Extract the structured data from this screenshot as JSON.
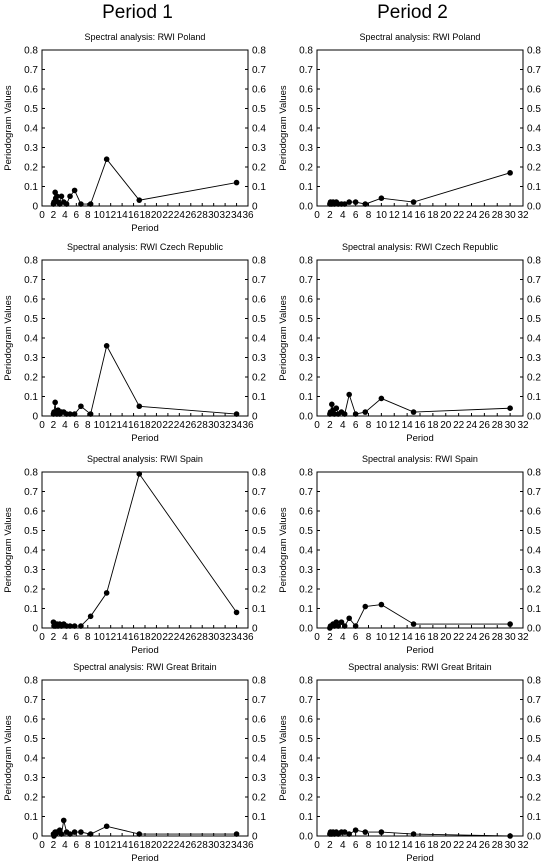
{
  "headers": [
    "Period 1",
    "Period 2"
  ],
  "y_axis_label": "Periodogram Values",
  "chart_data": [
    {
      "type": "line",
      "title": "Spectral analysis: RWI Poland",
      "xlabel": "Period",
      "ylabel": "Periodogram Values",
      "xlim": [
        0,
        36
      ],
      "xticks": [
        0,
        2,
        4,
        6,
        8,
        10,
        12,
        14,
        16,
        18,
        20,
        22,
        24,
        26,
        28,
        30,
        32,
        34,
        36
      ],
      "ylim": [
        0,
        0.8
      ],
      "yticks": [
        0,
        0.1,
        0.2,
        0.3,
        0.4,
        0.5,
        0.6,
        0.7,
        0.8
      ],
      "ytick_labels": [
        "0",
        "0.1",
        "0.2",
        "0.3",
        "0.4",
        "0.5",
        "0.6",
        "0.7",
        "0.8"
      ],
      "grid": false,
      "series": [
        {
          "x": [
            2.0,
            2.1,
            2.3,
            2.4,
            2.6,
            2.8,
            3.1,
            3.4,
            3.8,
            4.3,
            4.9,
            5.7,
            6.8,
            8.5,
            11.3,
            17.0,
            34.0
          ],
          "y": [
            0.01,
            0.02,
            0.07,
            0.04,
            0.05,
            0.02,
            0.01,
            0.05,
            0.02,
            0.01,
            0.05,
            0.08,
            0.01,
            0.01,
            0.24,
            0.03,
            0.12
          ]
        }
      ]
    },
    {
      "type": "line",
      "title": "Spectral analysis: RWI Poland",
      "xlabel": "",
      "ylabel": "Periodogram Values",
      "xlim": [
        0,
        32
      ],
      "xticks": [
        0,
        2,
        4,
        6,
        8,
        10,
        12,
        14,
        16,
        18,
        20,
        22,
        24,
        26,
        28,
        30,
        32
      ],
      "ylim": [
        0,
        0.8
      ],
      "yticks": [
        0,
        0.1,
        0.2,
        0.3,
        0.4,
        0.5,
        0.6,
        0.7,
        0.8
      ],
      "ytick_labels": [
        "0.0",
        "0.1",
        "0.2",
        "0.3",
        "0.4",
        "0.5",
        "0.6",
        "0.7",
        "0.8"
      ],
      "grid": false,
      "series": [
        {
          "x": [
            2.0,
            2.1,
            2.3,
            2.5,
            2.7,
            3.0,
            3.3,
            3.8,
            4.3,
            5.0,
            6.0,
            7.5,
            10.0,
            15.0,
            30.0
          ],
          "y": [
            0.01,
            0.02,
            0.01,
            0.02,
            0.01,
            0.02,
            0.01,
            0.01,
            0.01,
            0.02,
            0.02,
            0.01,
            0.04,
            0.02,
            0.17
          ]
        }
      ]
    },
    {
      "type": "line",
      "title": "Spectral analysis: RWI Czech Republic",
      "xlabel": "Period",
      "ylabel": "Periodogram Values",
      "xlim": [
        0,
        36
      ],
      "xticks": [
        0,
        2,
        4,
        6,
        8,
        10,
        12,
        14,
        16,
        18,
        20,
        22,
        24,
        26,
        28,
        30,
        32,
        34,
        36
      ],
      "ylim": [
        0,
        0.8
      ],
      "yticks": [
        0,
        0.1,
        0.2,
        0.3,
        0.4,
        0.5,
        0.6,
        0.7,
        0.8
      ],
      "ytick_labels": [
        "0",
        "0.1",
        "0.2",
        "0.3",
        "0.4",
        "0.5",
        "0.6",
        "0.7",
        "0.8"
      ],
      "grid": false,
      "series": [
        {
          "x": [
            2.0,
            2.1,
            2.3,
            2.4,
            2.6,
            2.8,
            3.1,
            3.4,
            3.8,
            4.3,
            4.9,
            5.7,
            6.8,
            8.5,
            11.3,
            17.0,
            34.0
          ],
          "y": [
            0.01,
            0.02,
            0.07,
            0.02,
            0.01,
            0.03,
            0.01,
            0.02,
            0.02,
            0.01,
            0.01,
            0.01,
            0.05,
            0.01,
            0.36,
            0.05,
            0.01
          ]
        }
      ]
    },
    {
      "type": "line",
      "title": "Spectral analysis: RWI Czech Republic",
      "xlabel": "Period",
      "ylabel": "Periodogram Values",
      "xlim": [
        0,
        32
      ],
      "xticks": [
        0,
        2,
        4,
        6,
        8,
        10,
        12,
        14,
        16,
        18,
        20,
        22,
        24,
        26,
        28,
        30,
        32
      ],
      "ylim": [
        0,
        0.8
      ],
      "yticks": [
        0,
        0.1,
        0.2,
        0.3,
        0.4,
        0.5,
        0.6,
        0.7,
        0.8
      ],
      "ytick_labels": [
        "0.0",
        "0.1",
        "0.2",
        "0.3",
        "0.4",
        "0.5",
        "0.6",
        "0.7",
        "0.8"
      ],
      "grid": false,
      "series": [
        {
          "x": [
            2.0,
            2.1,
            2.3,
            2.5,
            2.7,
            3.0,
            3.3,
            3.8,
            4.3,
            5.0,
            6.0,
            7.5,
            10.0,
            15.0,
            30.0
          ],
          "y": [
            0.01,
            0.02,
            0.06,
            0.03,
            0.01,
            0.04,
            0.01,
            0.02,
            0.01,
            0.11,
            0.01,
            0.02,
            0.09,
            0.02,
            0.04
          ]
        }
      ]
    },
    {
      "type": "line",
      "title": "Spectral analysis: RWI Spain",
      "xlabel": "Period",
      "ylabel": "Periodogram Values",
      "xlim": [
        0,
        36
      ],
      "xticks": [
        0,
        2,
        4,
        6,
        8,
        10,
        12,
        14,
        16,
        18,
        20,
        22,
        24,
        26,
        28,
        30,
        32,
        34,
        36
      ],
      "ylim": [
        0,
        0.8
      ],
      "yticks": [
        0,
        0.1,
        0.2,
        0.3,
        0.4,
        0.5,
        0.6,
        0.7,
        0.8
      ],
      "ytick_labels": [
        "0",
        "0.1",
        "0.2",
        "0.3",
        "0.4",
        "0.5",
        "0.6",
        "0.7",
        "0.8"
      ],
      "grid": false,
      "series": [
        {
          "x": [
            2.0,
            2.1,
            2.3,
            2.4,
            2.6,
            2.8,
            3.1,
            3.4,
            3.8,
            4.3,
            4.9,
            5.7,
            6.8,
            8.5,
            11.3,
            17.0,
            34.0
          ],
          "y": [
            0.03,
            0.01,
            0.02,
            0.01,
            0.02,
            0.01,
            0.02,
            0.01,
            0.02,
            0.01,
            0.01,
            0.01,
            0.01,
            0.06,
            0.18,
            0.79,
            0.08
          ]
        }
      ]
    },
    {
      "type": "line",
      "title": "Spectral analysis: RWI Spain",
      "xlabel": "Period",
      "ylabel": "Periodogram Values",
      "xlim": [
        0,
        32
      ],
      "xticks": [
        0,
        2,
        4,
        6,
        8,
        10,
        12,
        14,
        16,
        18,
        20,
        22,
        24,
        26,
        28,
        30,
        32
      ],
      "ylim": [
        0,
        0.8
      ],
      "yticks": [
        0,
        0.1,
        0.2,
        0.3,
        0.4,
        0.5,
        0.6,
        0.7,
        0.8
      ],
      "ytick_labels": [
        "0.0",
        "0.1",
        "0.2",
        "0.3",
        "0.4",
        "0.5",
        "0.6",
        "0.7",
        "0.8"
      ],
      "grid": false,
      "series": [
        {
          "x": [
            2.0,
            2.1,
            2.3,
            2.5,
            2.7,
            3.0,
            3.3,
            3.8,
            4.3,
            5.0,
            6.0,
            7.5,
            10.0,
            15.0,
            30.0
          ],
          "y": [
            0.0,
            0.01,
            0.01,
            0.02,
            0.01,
            0.03,
            0.01,
            0.03,
            0.01,
            0.05,
            0.01,
            0.11,
            0.12,
            0.02,
            0.02
          ]
        }
      ]
    },
    {
      "type": "line",
      "title": "Spectral analysis: RWI  Great Britain",
      "xlabel": "Period",
      "ylabel": "Periodogram Values",
      "xlim": [
        0,
        36
      ],
      "xticks": [
        0,
        2,
        4,
        6,
        8,
        10,
        12,
        14,
        16,
        18,
        20,
        22,
        24,
        26,
        28,
        30,
        32,
        34,
        36
      ],
      "ylim": [
        0,
        0.8
      ],
      "yticks": [
        0,
        0.1,
        0.2,
        0.3,
        0.4,
        0.5,
        0.6,
        0.7,
        0.8
      ],
      "ytick_labels": [
        "0",
        "0.1",
        "0.2",
        "0.3",
        "0.4",
        "0.5",
        "0.6",
        "0.7",
        "0.8"
      ],
      "grid": false,
      "series": [
        {
          "x": [
            2.0,
            2.1,
            2.3,
            2.4,
            2.6,
            2.8,
            3.1,
            3.4,
            3.8,
            4.3,
            4.9,
            5.7,
            6.8,
            8.5,
            11.3,
            17.0,
            34.0
          ],
          "y": [
            0.01,
            0.0,
            0.02,
            0.01,
            0.02,
            0.02,
            0.03,
            0.01,
            0.08,
            0.02,
            0.01,
            0.02,
            0.02,
            0.01,
            0.05,
            0.01,
            0.01
          ]
        }
      ]
    },
    {
      "type": "line",
      "title": "Spectral analysis: RWI  Great Britain",
      "xlabel": "Period",
      "ylabel": "Periodogram Values",
      "xlim": [
        0,
        32
      ],
      "xticks": [
        0,
        2,
        4,
        6,
        8,
        10,
        12,
        14,
        16,
        18,
        20,
        22,
        24,
        26,
        28,
        30,
        32
      ],
      "ylim": [
        0,
        0.8
      ],
      "yticks": [
        0,
        0.1,
        0.2,
        0.3,
        0.4,
        0.5,
        0.6,
        0.7,
        0.8
      ],
      "ytick_labels": [
        "0.0",
        "0.1",
        "0.2",
        "0.3",
        "0.4",
        "0.5",
        "0.6",
        "0.7",
        "0.8"
      ],
      "grid": false,
      "series": [
        {
          "x": [
            2.0,
            2.1,
            2.3,
            2.5,
            2.7,
            3.0,
            3.3,
            3.8,
            4.3,
            5.0,
            6.0,
            7.5,
            10.0,
            15.0,
            30.0
          ],
          "y": [
            0.01,
            0.02,
            0.01,
            0.02,
            0.01,
            0.02,
            0.01,
            0.02,
            0.02,
            0.01,
            0.03,
            0.02,
            0.02,
            0.01,
            0.0
          ]
        }
      ]
    }
  ]
}
